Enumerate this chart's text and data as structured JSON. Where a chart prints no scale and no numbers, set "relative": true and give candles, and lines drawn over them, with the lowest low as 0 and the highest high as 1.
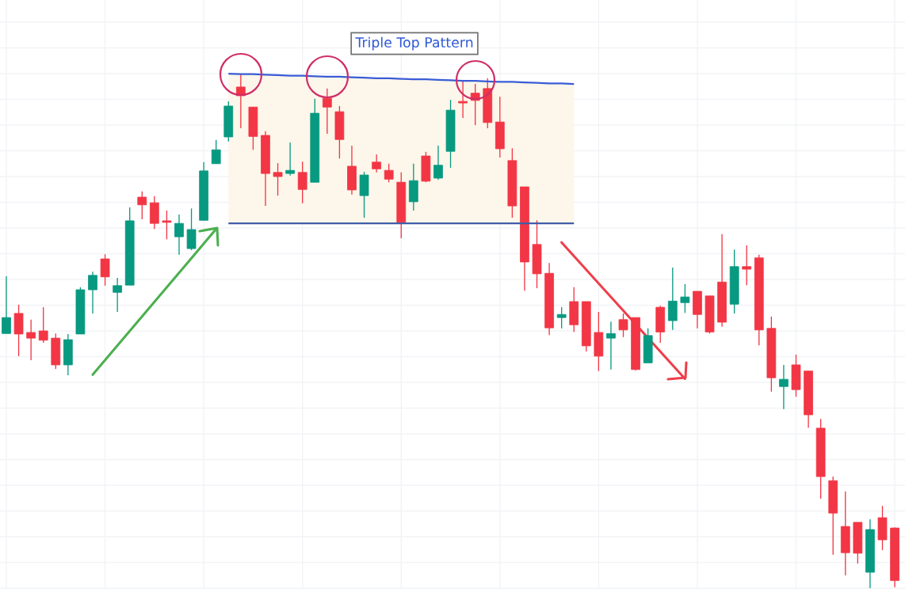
{
  "chart_data": {
    "type": "candlestick",
    "title": "Triple Top Pattern",
    "relative": true,
    "grid": true,
    "categories": [
      null,
      null,
      null,
      null,
      null,
      null,
      null,
      null,
      null,
      null,
      null,
      null,
      null,
      null,
      null,
      null,
      null,
      null,
      null,
      null,
      null,
      null,
      null,
      null,
      null,
      null,
      null,
      null,
      null,
      null,
      null,
      null,
      null,
      null,
      null,
      null,
      null,
      null,
      null,
      null,
      null,
      null,
      null,
      null,
      null,
      null,
      null,
      null,
      null,
      null,
      null,
      null,
      null,
      null,
      null,
      null,
      null,
      null,
      null,
      null,
      null,
      null,
      null,
      null,
      null,
      null,
      null,
      null,
      null,
      null,
      null,
      null,
      null
    ],
    "ohlc": [
      [
        0.495,
        0.606,
        0.495,
        0.526
      ],
      [
        0.534,
        0.551,
        0.451,
        0.494
      ],
      [
        0.497,
        0.522,
        0.443,
        0.486
      ],
      [
        0.5,
        0.546,
        0.477,
        0.482
      ],
      [
        0.486,
        0.495,
        0.426,
        0.434
      ],
      [
        0.434,
        0.494,
        0.414,
        0.483
      ],
      [
        0.494,
        0.585,
        0.494,
        0.58
      ],
      [
        0.58,
        0.615,
        0.534,
        0.608
      ],
      [
        0.64,
        0.649,
        0.588,
        0.605
      ],
      [
        0.575,
        0.603,
        0.537,
        0.588
      ],
      [
        0.589,
        0.74,
        0.589,
        0.714
      ],
      [
        0.76,
        0.771,
        0.717,
        0.745
      ],
      [
        0.749,
        0.762,
        0.698,
        0.709
      ],
      [
        0.714,
        0.734,
        0.678,
        0.711
      ],
      [
        0.683,
        0.726,
        0.648,
        0.709
      ],
      [
        0.66,
        0.738,
        0.657,
        0.697
      ],
      [
        0.715,
        0.828,
        0.715,
        0.811
      ],
      [
        0.825,
        0.871,
        0.825,
        0.852
      ],
      [
        0.877,
        0.946,
        0.868,
        0.937
      ],
      [
        0.974,
        1.0,
        0.894,
        0.957
      ],
      [
        0.935,
        0.935,
        0.852,
        0.878
      ],
      [
        0.88,
        0.888,
        0.743,
        0.806
      ],
      [
        0.808,
        0.826,
        0.763,
        0.8
      ],
      [
        0.806,
        0.866,
        0.802,
        0.812
      ],
      [
        0.808,
        0.829,
        0.748,
        0.775
      ],
      [
        0.789,
        0.951,
        0.789,
        0.923
      ],
      [
        0.952,
        0.971,
        0.883,
        0.935
      ],
      [
        0.926,
        0.937,
        0.835,
        0.872
      ],
      [
        0.82,
        0.86,
        0.765,
        0.774
      ],
      [
        0.763,
        0.809,
        0.72,
        0.803
      ],
      [
        0.828,
        0.843,
        0.808,
        0.815
      ],
      [
        0.812,
        0.825,
        0.789,
        0.795
      ],
      [
        0.789,
        0.808,
        0.68,
        0.711
      ],
      [
        0.751,
        0.825,
        0.734,
        0.792
      ],
      [
        0.84,
        0.848,
        0.789,
        0.791
      ],
      [
        0.797,
        0.86,
        0.794,
        0.822
      ],
      [
        0.849,
        0.949,
        0.817,
        0.929
      ],
      [
        0.946,
        0.985,
        0.914,
        0.943
      ],
      [
        0.962,
        0.98,
        0.9,
        0.948
      ],
      [
        0.971,
        0.991,
        0.894,
        0.905
      ],
      [
        0.906,
        0.955,
        0.837,
        0.854
      ],
      [
        0.831,
        0.855,
        0.72,
        0.743
      ],
      [
        0.78,
        0.78,
        0.578,
        0.634
      ],
      [
        0.668,
        0.715,
        0.583,
        0.611
      ],
      [
        0.612,
        0.632,
        0.492,
        0.506
      ],
      [
        0.526,
        0.546,
        0.505,
        0.532
      ],
      [
        0.557,
        0.585,
        0.498,
        0.512
      ],
      [
        0.557,
        0.557,
        0.46,
        0.471
      ],
      [
        0.497,
        0.537,
        0.422,
        0.451
      ],
      [
        0.486,
        0.518,
        0.425,
        0.495
      ],
      [
        0.522,
        0.534,
        0.488,
        0.502
      ],
      [
        0.526,
        0.526,
        0.423,
        0.425
      ],
      [
        0.438,
        0.505,
        0.438,
        0.491
      ],
      [
        0.546,
        0.549,
        0.477,
        0.498
      ],
      [
        0.52,
        0.623,
        0.502,
        0.558
      ],
      [
        0.555,
        0.591,
        0.535,
        0.566
      ],
      [
        0.577,
        0.577,
        0.505,
        0.532
      ],
      [
        0.568,
        0.568,
        0.495,
        0.498
      ],
      [
        0.595,
        0.688,
        0.508,
        0.517
      ],
      [
        0.552,
        0.658,
        0.534,
        0.625
      ],
      [
        0.625,
        0.666,
        0.589,
        0.62
      ],
      [
        0.642,
        0.648,
        0.472,
        0.502
      ],
      [
        0.505,
        0.528,
        0.382,
        0.409
      ],
      [
        0.392,
        0.434,
        0.348,
        0.406
      ],
      [
        0.434,
        0.454,
        0.372,
        0.386
      ],
      [
        0.422,
        0.422,
        0.312,
        0.337
      ],
      [
        0.311,
        0.329,
        0.174,
        0.217
      ],
      [
        0.209,
        0.217,
        0.065,
        0.146
      ],
      [
        0.12,
        0.188,
        0.025,
        0.069
      ],
      [
        0.128,
        0.128,
        0.048,
        0.068
      ],
      [
        0.031,
        0.134,
        0,
        0.114
      ],
      [
        0.137,
        0.16,
        0.074,
        0.094
      ],
      [
        0.117,
        0.118,
        0.002,
        0.015
      ]
    ],
    "colors": [
      "#089981",
      "#f23645",
      "#f23645",
      "#f23645",
      "#f23645",
      "#089981",
      "#089981",
      "#089981",
      "#f23645",
      "#089981",
      "#089981",
      "#f23645",
      "#f23645",
      "#f23645",
      "#089981",
      "#089981",
      "#089981",
      "#089981",
      "#089981",
      "#f23645",
      "#f23645",
      "#f23645",
      "#f23645",
      "#089981",
      "#f23645",
      "#089981",
      "#f23645",
      "#f23645",
      "#f23645",
      "#089981",
      "#f23645",
      "#f23645",
      "#f23645",
      "#089981",
      "#f23645",
      "#089981",
      "#089981",
      "#f23645",
      "#f23645",
      "#f23645",
      "#f23645",
      "#f23645",
      "#f23645",
      "#f23645",
      "#f23645",
      "#089981",
      "#f23645",
      "#f23645",
      "#f23645",
      "#089981",
      "#f23645",
      "#f23645",
      "#089981",
      "#f23645",
      "#089981",
      "#089981",
      "#f23645",
      "#f23645",
      "#f23645",
      "#089981",
      "#f23645",
      "#f23645",
      "#f23645",
      "#089981",
      "#f23645",
      "#f23645",
      "#f23645",
      "#f23645",
      "#f23645",
      "#f23645",
      "#089981",
      "#f23645",
      "#f23645"
    ],
    "series": [
      {
        "type": "line",
        "color": "#3a5cd6",
        "values": [
          null,
          null,
          null,
          null,
          null,
          null,
          null,
          null,
          null,
          null,
          null,
          null,
          null,
          null,
          null,
          null,
          null,
          null,
          1.0,
          0.999,
          0.999,
          0.998,
          0.997,
          0.996,
          0.996,
          0.995,
          0.994,
          0.994,
          0.993,
          0.992,
          0.991,
          0.991,
          0.99,
          0.989,
          0.989,
          0.988,
          0.987,
          0.986,
          0.986,
          0.985,
          0.984,
          0.984,
          0.983,
          0.982,
          0.981,
          0.981,
          0.98,
          null,
          null,
          null,
          null,
          null,
          null,
          null,
          null,
          null,
          null,
          null,
          null,
          null,
          null,
          null,
          null,
          null,
          null,
          null,
          null,
          null,
          null,
          null,
          null,
          null,
          null
        ]
      },
      {
        "type": "line",
        "color": "#405ca8",
        "values": [
          null,
          null,
          null,
          null,
          null,
          null,
          null,
          null,
          null,
          null,
          null,
          null,
          null,
          null,
          null,
          null,
          null,
          null,
          0.709,
          0.709,
          0.709,
          0.709,
          0.709,
          0.709,
          0.709,
          0.709,
          0.709,
          0.709,
          0.709,
          0.709,
          0.709,
          0.709,
          0.709,
          0.709,
          0.709,
          0.709,
          0.709,
          0.709,
          0.709,
          0.709,
          0.709,
          0.709,
          0.709,
          0.709,
          0.709,
          0.709,
          0.709,
          null,
          null,
          null,
          null,
          null,
          null,
          null,
          null,
          null,
          null,
          null,
          null,
          null,
          null,
          null,
          null,
          null,
          null,
          null,
          null,
          null,
          null,
          null,
          null,
          null,
          null
        ]
      },
      {
        "type": "line",
        "color": "#4caf50",
        "values": [
          null,
          null,
          null,
          null,
          null,
          null,
          null,
          0.415,
          null,
          null,
          null,
          null,
          null,
          null,
          null,
          null,
          null,
          0.698,
          null,
          null,
          null,
          null,
          null,
          null,
          null,
          null,
          null,
          null,
          null,
          null,
          null,
          null,
          null,
          null,
          null,
          null,
          null,
          null,
          null,
          null,
          null,
          null,
          null,
          null,
          null,
          null,
          null,
          null,
          null,
          null,
          null,
          null,
          null,
          null,
          null,
          null,
          null,
          null,
          null,
          null,
          null,
          null,
          null,
          null,
          null,
          null,
          null,
          null,
          null,
          null,
          null,
          null,
          null
        ]
      },
      {
        "type": "line",
        "color": "#ee3f4b",
        "values": [
          null,
          null,
          null,
          null,
          null,
          null,
          null,
          null,
          null,
          null,
          null,
          null,
          null,
          null,
          null,
          null,
          null,
          null,
          null,
          null,
          null,
          null,
          null,
          null,
          null,
          null,
          null,
          null,
          null,
          null,
          null,
          null,
          null,
          null,
          null,
          null,
          null,
          null,
          null,
          null,
          null,
          null,
          null,
          null,
          null,
          0.672,
          null,
          null,
          null,
          null,
          null,
          null,
          null,
          null,
          null,
          0.407,
          null,
          null,
          null,
          null,
          null,
          null,
          null,
          null,
          null,
          null,
          null,
          null,
          null,
          null,
          null,
          null,
          null
        ]
      }
    ]
  }
}
